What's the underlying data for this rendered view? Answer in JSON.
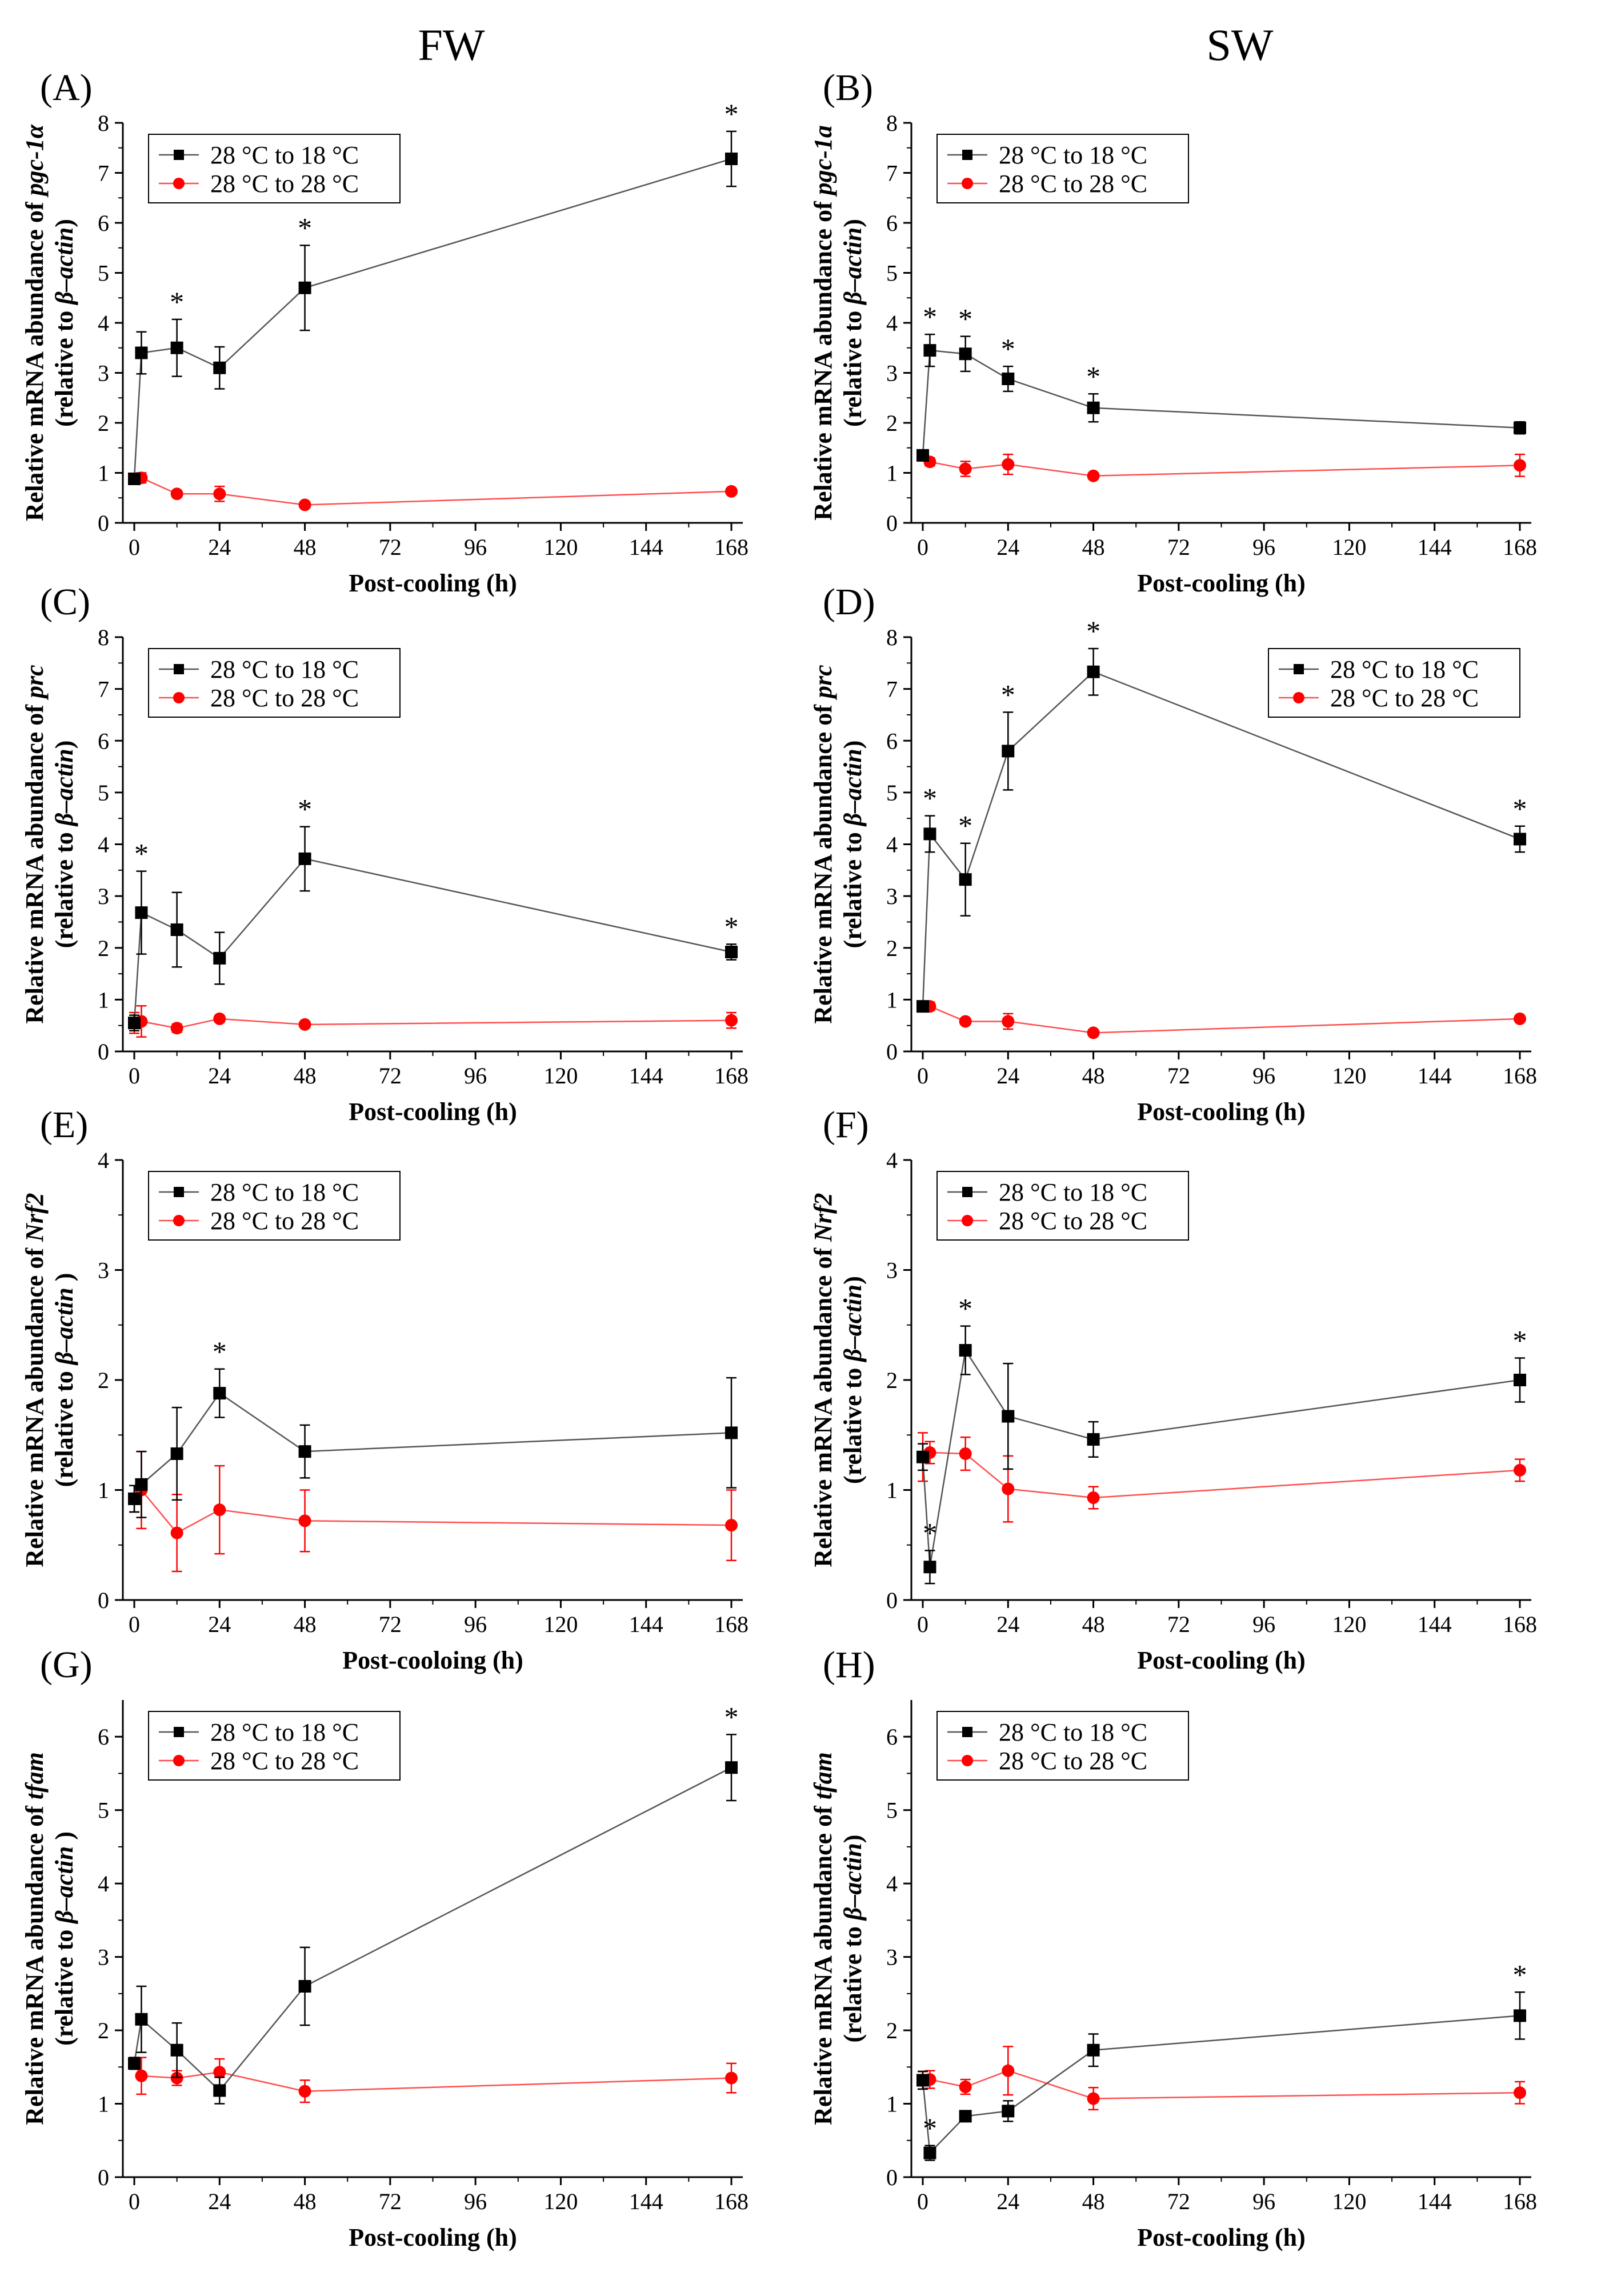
{
  "column_titles": [
    "FW",
    "SW"
  ],
  "legend_labels": [
    "28 °C to 18 °C",
    "28 °C to 28 °C"
  ],
  "colors": {
    "cooled": "#000000",
    "cooled_line": "#555555",
    "control": "#ff0000",
    "control_line": "#ff4d4d",
    "axis": "#000000"
  },
  "chart_data": [
    {
      "panel": "(A)",
      "type": "line",
      "xlabel": "Post-cooling (h)",
      "ylabel_line1": [
        "Relative mRNA abundance of ",
        "pgc-1α"
      ],
      "ylabel_line2": [
        "(relative to ",
        "β–actin",
        ")"
      ],
      "xlim": [
        0,
        168
      ],
      "ylim": [
        0,
        8
      ],
      "xticks": [
        0,
        24,
        48,
        72,
        96,
        120,
        144,
        168
      ],
      "yticks": [
        0,
        1,
        2,
        3,
        4,
        5,
        6,
        7,
        8
      ],
      "legend": "top-left",
      "series": [
        {
          "name": "28 °C to 18 °C",
          "marker": "square",
          "x": [
            0,
            2,
            12,
            24,
            48,
            168
          ],
          "y": [
            0.88,
            3.4,
            3.5,
            3.1,
            4.7,
            7.28
          ],
          "err": [
            0.1,
            0.42,
            0.57,
            0.42,
            0.85,
            0.55
          ],
          "sig": [
            false,
            false,
            true,
            false,
            true,
            true
          ]
        },
        {
          "name": "28 °C to 28 °C",
          "marker": "circle",
          "x": [
            0,
            2,
            12,
            24,
            48,
            168
          ],
          "y": [
            0.88,
            0.9,
            0.58,
            0.58,
            0.36,
            0.63
          ],
          "err": [
            0.1,
            0.1,
            0.06,
            0.15,
            0.04,
            0.05
          ]
        }
      ]
    },
    {
      "panel": "(B)",
      "type": "line",
      "xlabel": "Post-cooling (h)",
      "ylabel_line1": [
        "Relative mRNA abundance of ",
        "pgc-1a"
      ],
      "ylabel_line2": [
        "(relative to ",
        "β–actin",
        ")"
      ],
      "xlim": [
        0,
        168
      ],
      "ylim": [
        0,
        8
      ],
      "xticks": [
        0,
        24,
        48,
        72,
        96,
        120,
        144,
        168
      ],
      "yticks": [
        0,
        1,
        2,
        3,
        4,
        5,
        6,
        7,
        8
      ],
      "legend": "top-left",
      "series": [
        {
          "name": "28 °C to 18 °C",
          "marker": "square",
          "x": [
            0,
            2,
            12,
            24,
            48,
            168
          ],
          "y": [
            1.35,
            3.45,
            3.38,
            2.88,
            2.3,
            1.9
          ],
          "err": [
            0.1,
            0.32,
            0.35,
            0.25,
            0.28,
            0.12
          ],
          "sig": [
            false,
            true,
            true,
            true,
            true,
            false
          ]
        },
        {
          "name": "28 °C to 28 °C",
          "marker": "circle",
          "x": [
            0,
            2,
            12,
            24,
            48,
            168
          ],
          "y": [
            1.35,
            1.22,
            1.08,
            1.17,
            0.94,
            1.15
          ],
          "err": [
            0.08,
            0.08,
            0.15,
            0.2,
            0.06,
            0.22
          ]
        }
      ]
    },
    {
      "panel": "(C)",
      "type": "line",
      "xlabel": "Post-cooling (h)",
      "ylabel_line1": [
        "Relative mRNA abundance of ",
        "prc"
      ],
      "ylabel_line2": [
        "(relative to ",
        "β–actin",
        ")"
      ],
      "xlim": [
        0,
        168
      ],
      "ylim": [
        0,
        8
      ],
      "xticks": [
        0,
        24,
        48,
        72,
        96,
        120,
        144,
        168
      ],
      "yticks": [
        0,
        1,
        2,
        3,
        4,
        5,
        6,
        7,
        8
      ],
      "legend": "top-left",
      "series": [
        {
          "name": "28 °C to 18 °C",
          "marker": "square",
          "x": [
            0,
            2,
            12,
            24,
            48,
            168
          ],
          "y": [
            0.55,
            2.68,
            2.35,
            1.8,
            3.72,
            1.92
          ],
          "err": [
            0.15,
            0.8,
            0.72,
            0.5,
            0.62,
            0.15
          ],
          "sig": [
            false,
            true,
            false,
            false,
            true,
            true
          ]
        },
        {
          "name": "28 °C to 28 °C",
          "marker": "circle",
          "x": [
            0,
            2,
            12,
            24,
            48,
            168
          ],
          "y": [
            0.55,
            0.58,
            0.45,
            0.63,
            0.52,
            0.6
          ],
          "err": [
            0.2,
            0.3,
            0.08,
            0.06,
            0.05,
            0.15
          ]
        }
      ]
    },
    {
      "panel": "(D)",
      "type": "line",
      "xlabel": "Post-cooling (h)",
      "ylabel_line1": [
        "Relative mRNA abundance of ",
        "prc"
      ],
      "ylabel_line2": [
        "(relative to ",
        "β–actin",
        ")"
      ],
      "xlim": [
        0,
        168
      ],
      "ylim": [
        0,
        8
      ],
      "xticks": [
        0,
        24,
        48,
        72,
        96,
        120,
        144,
        168
      ],
      "yticks": [
        0,
        1,
        2,
        3,
        4,
        5,
        6,
        7,
        8
      ],
      "legend": "top-right",
      "series": [
        {
          "name": "28 °C to 18 °C",
          "marker": "square",
          "x": [
            0,
            2,
            12,
            24,
            48,
            168
          ],
          "y": [
            0.87,
            4.2,
            3.32,
            5.8,
            7.33,
            4.1
          ],
          "err": [
            0.1,
            0.35,
            0.7,
            0.75,
            0.45,
            0.25
          ],
          "sig": [
            false,
            true,
            true,
            true,
            true,
            true
          ]
        },
        {
          "name": "28 °C to 28 °C",
          "marker": "circle",
          "x": [
            0,
            2,
            12,
            24,
            48,
            168
          ],
          "y": [
            0.87,
            0.87,
            0.58,
            0.58,
            0.36,
            0.63
          ],
          "err": [
            0.1,
            0.08,
            0.06,
            0.15,
            0.04,
            0.05
          ]
        }
      ]
    },
    {
      "panel": "(E)",
      "type": "line",
      "xlabel": "Post-cooloing (h)",
      "ylabel_line1": [
        "Relative mRNA abundance of ",
        "Nrf2"
      ],
      "ylabel_line2": [
        "(relative to ",
        "β–actin",
        " )"
      ],
      "xlim": [
        0,
        168
      ],
      "ylim": [
        0,
        4
      ],
      "xticks": [
        0,
        24,
        48,
        72,
        96,
        120,
        144,
        168
      ],
      "yticks": [
        0,
        1,
        2,
        3,
        4
      ],
      "legend": "top-left",
      "series": [
        {
          "name": "28 °C to 18 °C",
          "marker": "square",
          "x": [
            0,
            2,
            12,
            24,
            48,
            168
          ],
          "y": [
            0.92,
            1.05,
            1.33,
            1.88,
            1.35,
            1.52
          ],
          "err": [
            0.12,
            0.3,
            0.42,
            0.22,
            0.24,
            0.5
          ],
          "sig": [
            false,
            false,
            false,
            true,
            false,
            false
          ]
        },
        {
          "name": "28 °C to 28 °C",
          "marker": "circle",
          "x": [
            0,
            2,
            12,
            24,
            48,
            168
          ],
          "y": [
            0.92,
            1.0,
            0.61,
            0.82,
            0.72,
            0.68
          ],
          "err": [
            0.12,
            0.35,
            0.35,
            0.4,
            0.28,
            0.32
          ]
        }
      ]
    },
    {
      "panel": "(F)",
      "type": "line",
      "xlabel": "Post-cooling (h)",
      "ylabel_line1": [
        "Relative mRNA abundance of ",
        "Nrf2"
      ],
      "ylabel_line2": [
        "(relative to ",
        "β–actin",
        ")"
      ],
      "xlim": [
        0,
        168
      ],
      "ylim": [
        0,
        4
      ],
      "xticks": [
        0,
        24,
        48,
        72,
        96,
        120,
        144,
        168
      ],
      "yticks": [
        0,
        1,
        2,
        3,
        4
      ],
      "legend": "top-left",
      "series": [
        {
          "name": "28 °C to 18 °C",
          "marker": "square",
          "x": [
            0,
            2,
            12,
            24,
            48,
            168
          ],
          "y": [
            1.3,
            0.3,
            2.27,
            1.67,
            1.46,
            2.0
          ],
          "err": [
            0.12,
            0.15,
            0.22,
            0.48,
            0.16,
            0.2
          ],
          "sig": [
            false,
            true,
            true,
            false,
            false,
            true
          ]
        },
        {
          "name": "28 °C to 28 °C",
          "marker": "circle",
          "x": [
            0,
            2,
            12,
            24,
            48,
            168
          ],
          "y": [
            1.3,
            1.34,
            1.33,
            1.01,
            0.93,
            1.18
          ],
          "err": [
            0.22,
            0.1,
            0.15,
            0.3,
            0.1,
            0.1
          ]
        }
      ]
    },
    {
      "panel": "(G)",
      "type": "line",
      "xlabel": "Post-cooling (h)",
      "ylabel_line1": [
        "Relative mRNA abundance of ",
        "tfam"
      ],
      "ylabel_line2": [
        "(relative to ",
        "β–actin",
        " )"
      ],
      "xlim": [
        0,
        168
      ],
      "ylim": [
        0,
        6.5
      ],
      "xticks": [
        0,
        24,
        48,
        72,
        96,
        120,
        144,
        168
      ],
      "yticks": [
        0,
        1,
        2,
        3,
        4,
        5,
        6
      ],
      "legend": "top-left",
      "series": [
        {
          "name": "28 °C to 18 °C",
          "marker": "square",
          "x": [
            0,
            2,
            12,
            24,
            48,
            168
          ],
          "y": [
            1.55,
            2.15,
            1.73,
            1.18,
            2.6,
            5.58
          ],
          "err": [
            0.08,
            0.45,
            0.37,
            0.18,
            0.53,
            0.45
          ],
          "sig": [
            false,
            false,
            false,
            false,
            false,
            true
          ]
        },
        {
          "name": "28 °C to 28 °C",
          "marker": "circle",
          "x": [
            0,
            2,
            12,
            24,
            48,
            168
          ],
          "y": [
            1.55,
            1.38,
            1.35,
            1.43,
            1.17,
            1.35
          ],
          "err": [
            0.08,
            0.25,
            0.1,
            0.18,
            0.15,
            0.2
          ]
        }
      ]
    },
    {
      "panel": "(H)",
      "type": "line",
      "xlabel": "Post-cooling (h)",
      "ylabel_line1": [
        "Relative mRNA abundance of ",
        "tfam"
      ],
      "ylabel_line2": [
        "(relative to ",
        "β–actin",
        ")"
      ],
      "xlim": [
        0,
        168
      ],
      "ylim": [
        0,
        6.5
      ],
      "xticks": [
        0,
        24,
        48,
        72,
        96,
        120,
        144,
        168
      ],
      "yticks": [
        0,
        1,
        2,
        3,
        4,
        5,
        6
      ],
      "legend": "top-left",
      "series": [
        {
          "name": "28 °C to 18 °C",
          "marker": "square",
          "x": [
            0,
            2,
            12,
            24,
            48,
            168
          ],
          "y": [
            1.32,
            0.33,
            0.83,
            0.9,
            1.73,
            2.2
          ],
          "err": [
            0.12,
            0.1,
            0.05,
            0.14,
            0.22,
            0.32
          ],
          "sig": [
            false,
            true,
            false,
            false,
            false,
            true
          ]
        },
        {
          "name": "28 °C to 28 °C",
          "marker": "circle",
          "x": [
            0,
            2,
            12,
            24,
            48,
            168
          ],
          "y": [
            1.32,
            1.33,
            1.23,
            1.45,
            1.07,
            1.15
          ],
          "err": [
            0.12,
            0.12,
            0.1,
            0.33,
            0.15,
            0.15
          ]
        }
      ]
    }
  ]
}
